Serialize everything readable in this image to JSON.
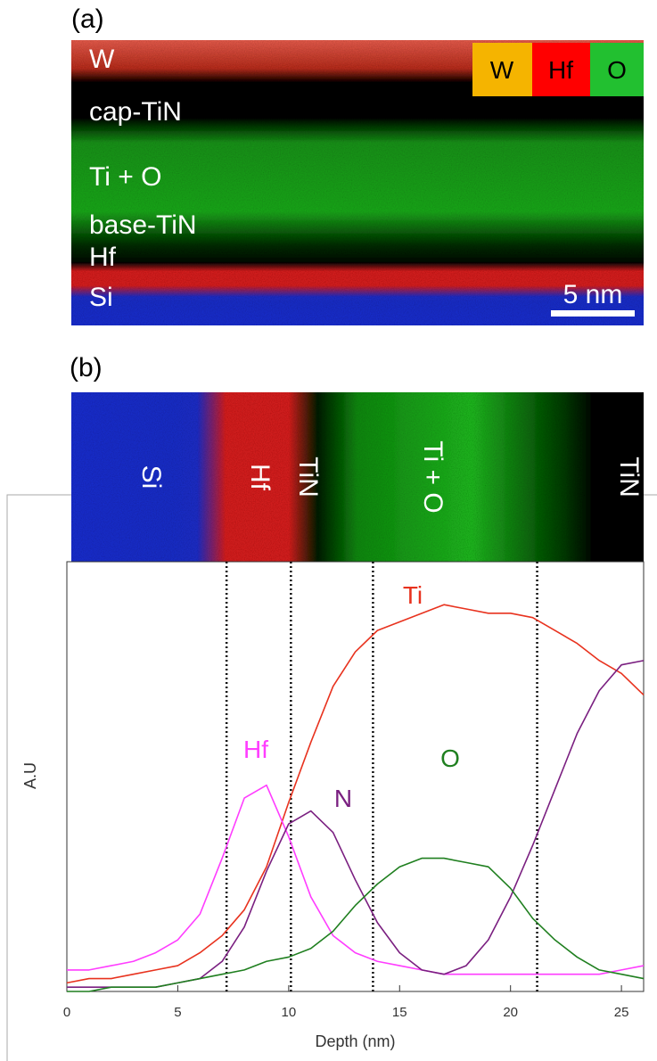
{
  "panel_a": {
    "label": "(a)",
    "layers": [
      "W",
      "cap-TiN",
      "Ti + O",
      "base-TiN",
      "Hf",
      "Si"
    ],
    "legend": [
      "W",
      "Hf",
      "O"
    ],
    "scale_bar": "5 nm"
  },
  "panel_b": {
    "label": "(b)",
    "layers": [
      "Si",
      "Hf",
      "TiN",
      "Ti + O",
      "TiN"
    ]
  },
  "chart_data": {
    "type": "line",
    "xlabel": "Depth (nm)",
    "ylabel": "A.U",
    "x": [
      0,
      1,
      2,
      3,
      4,
      5,
      6,
      7,
      8,
      9,
      10,
      11,
      12,
      13,
      14,
      15,
      16,
      17,
      18,
      19,
      20,
      21,
      22,
      23,
      24,
      25,
      26
    ],
    "series": [
      {
        "name": "Ti",
        "color": "#e8321e",
        "values": [
          0.02,
          0.03,
          0.03,
          0.04,
          0.05,
          0.06,
          0.09,
          0.13,
          0.19,
          0.29,
          0.44,
          0.58,
          0.71,
          0.79,
          0.84,
          0.86,
          0.88,
          0.9,
          0.89,
          0.88,
          0.88,
          0.87,
          0.84,
          0.81,
          0.77,
          0.74,
          0.69
        ]
      },
      {
        "name": "Hf",
        "color": "#ff3dff",
        "values": [
          0.05,
          0.05,
          0.06,
          0.07,
          0.09,
          0.12,
          0.18,
          0.31,
          0.45,
          0.48,
          0.36,
          0.22,
          0.13,
          0.09,
          0.07,
          0.06,
          0.05,
          0.04,
          0.04,
          0.04,
          0.04,
          0.04,
          0.04,
          0.04,
          0.04,
          0.05,
          0.06
        ]
      },
      {
        "name": "N",
        "color": "#7a1f80",
        "values": [
          0.01,
          0.01,
          0.01,
          0.01,
          0.01,
          0.02,
          0.03,
          0.07,
          0.15,
          0.28,
          0.39,
          0.42,
          0.37,
          0.26,
          0.16,
          0.09,
          0.05,
          0.04,
          0.06,
          0.12,
          0.22,
          0.34,
          0.47,
          0.6,
          0.7,
          0.76,
          0.77
        ]
      },
      {
        "name": "O",
        "color": "#1f7f1f",
        "values": [
          0,
          0,
          0.01,
          0.01,
          0.01,
          0.02,
          0.03,
          0.04,
          0.05,
          0.07,
          0.08,
          0.1,
          0.14,
          0.2,
          0.25,
          0.29,
          0.31,
          0.31,
          0.3,
          0.29,
          0.24,
          0.17,
          0.12,
          0.08,
          0.05,
          0.04,
          0.03
        ]
      }
    ],
    "xlim": [
      0,
      26
    ],
    "xticks": [
      0,
      5,
      10,
      15,
      20,
      25
    ],
    "ylim": [
      0,
      1
    ],
    "vlines": [
      7.2,
      10.1,
      13.8,
      21.2
    ]
  }
}
